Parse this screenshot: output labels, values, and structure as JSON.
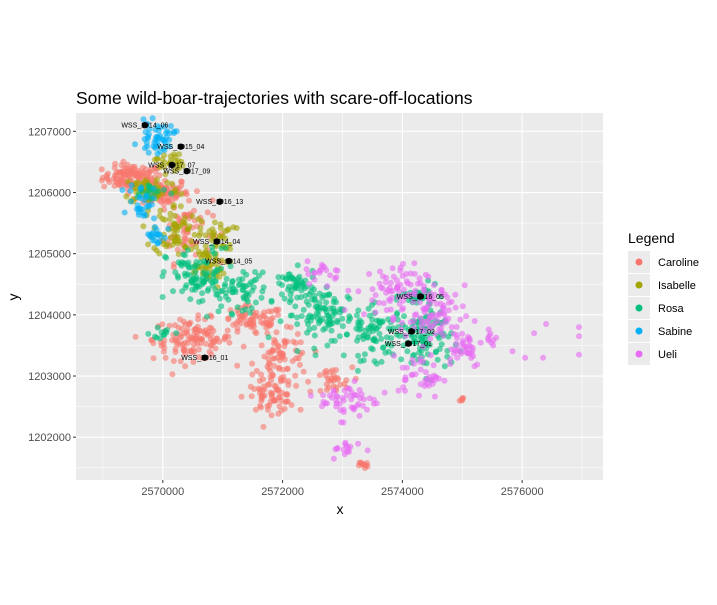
{
  "chart_data": {
    "type": "scatter",
    "title": "Some wild-boar-trajectories with scare-off-locations",
    "xlabel": "x",
    "ylabel": "y",
    "xlim": [
      2568550,
      2577350
    ],
    "ylim": [
      1201300,
      1207300
    ],
    "x_ticks": [
      2570000,
      2572000,
      2574000,
      2576000
    ],
    "x_tick_labels": [
      "2570000",
      "2572000",
      "2574000",
      "2576000"
    ],
    "y_ticks": [
      1202000,
      1203000,
      1204000,
      1205000,
      1206000,
      1207000
    ],
    "y_tick_labels": [
      "1202000",
      "1203000",
      "1204000",
      "1205000",
      "1206000",
      "1207000"
    ],
    "grid": true,
    "legend": {
      "title": "Legend",
      "placement": "right",
      "entries": [
        "Caroline",
        "Isabelle",
        "Rosa",
        "Sabine",
        "Ueli"
      ]
    },
    "colors": {
      "Caroline": "#F8766D",
      "Isabelle": "#A3A500",
      "Rosa": "#00BF7D",
      "Sabine": "#00B0F6",
      "Ueli": "#E76BF3",
      "scare_off": "#000000",
      "panel": "#EBEBEB",
      "grid": "#FFFFFF"
    },
    "series": [
      {
        "name": "Caroline",
        "clusters": [
          {
            "center": [
              2569500,
              1206250
            ],
            "spread": [
              420,
              170
            ],
            "n": 110
          },
          {
            "center": [
              2570000,
              1206000
            ],
            "spread": [
              350,
              200
            ],
            "n": 70
          },
          {
            "center": [
              2570400,
              1205400
            ],
            "spread": [
              350,
              450
            ],
            "n": 60
          },
          {
            "center": [
              2570500,
              1203600
            ],
            "spread": [
              550,
              280
            ],
            "n": 120
          },
          {
            "center": [
              2571500,
              1203900
            ],
            "spread": [
              450,
              200
            ],
            "n": 70
          },
          {
            "center": [
              2572000,
              1203250
            ],
            "spread": [
              380,
              380
            ],
            "n": 80
          },
          {
            "center": [
              2571800,
              1202650
            ],
            "spread": [
              350,
              200
            ],
            "n": 55
          },
          {
            "center": [
              2572800,
              1202900
            ],
            "spread": [
              300,
              200
            ],
            "n": 30
          },
          {
            "center": [
              2573350,
              1201550
            ],
            "spread": [
              60,
              50
            ],
            "n": 10
          },
          {
            "center": [
              2575000,
              1202600
            ],
            "spread": [
              80,
              60
            ],
            "n": 5
          }
        ]
      },
      {
        "name": "Isabelle",
        "clusters": [
          {
            "center": [
              2569800,
              1206050
            ],
            "spread": [
              400,
              200
            ],
            "n": 60
          },
          {
            "center": [
              2570200,
              1205400
            ],
            "spread": [
              300,
              350
            ],
            "n": 60
          },
          {
            "center": [
              2570700,
              1204800
            ],
            "spread": [
              300,
              300
            ],
            "n": 50
          },
          {
            "center": [
              2570900,
              1205300
            ],
            "spread": [
              250,
              200
            ],
            "n": 30
          },
          {
            "center": [
              2570100,
              1206500
            ],
            "spread": [
              200,
              150
            ],
            "n": 25
          }
        ]
      },
      {
        "name": "Rosa",
        "clusters": [
          {
            "center": [
              2570600,
              1204600
            ],
            "spread": [
              450,
              400
            ],
            "n": 90
          },
          {
            "center": [
              2571300,
              1204400
            ],
            "spread": [
              400,
              300
            ],
            "n": 60
          },
          {
            "center": [
              2572700,
              1204000
            ],
            "spread": [
              550,
              350
            ],
            "n": 110
          },
          {
            "center": [
              2573600,
              1203700
            ],
            "spread": [
              450,
              350
            ],
            "n": 80
          },
          {
            "center": [
              2574400,
              1203600
            ],
            "spread": [
              350,
              450
            ],
            "n": 90
          },
          {
            "center": [
              2574300,
              1204300
            ],
            "spread": [
              250,
              150
            ],
            "n": 30
          },
          {
            "center": [
              2572200,
              1204500
            ],
            "spread": [
              300,
              200
            ],
            "n": 40
          },
          {
            "center": [
              2569800,
              1206000
            ],
            "spread": [
              250,
              150
            ],
            "n": 20
          },
          {
            "center": [
              2570000,
              1203700
            ],
            "spread": [
              180,
              100
            ],
            "n": 12
          }
        ]
      },
      {
        "name": "Sabine",
        "clusters": [
          {
            "center": [
              2569900,
              1206900
            ],
            "spread": [
              250,
              200
            ],
            "n": 50
          },
          {
            "center": [
              2569650,
              1205850
            ],
            "spread": [
              180,
              250
            ],
            "n": 30
          },
          {
            "center": [
              2569900,
              1205300
            ],
            "spread": [
              150,
              150
            ],
            "n": 20
          }
        ]
      },
      {
        "name": "Ueli",
        "clusters": [
          {
            "center": [
              2573800,
              1204400
            ],
            "spread": [
              500,
              350
            ],
            "n": 70
          },
          {
            "center": [
              2574500,
              1204000
            ],
            "spread": [
              450,
              400
            ],
            "n": 80
          },
          {
            "center": [
              2574300,
              1203000
            ],
            "spread": [
              300,
              300
            ],
            "n": 40
          },
          {
            "center": [
              2573100,
              1202600
            ],
            "spread": [
              400,
              250
            ],
            "n": 50
          },
          {
            "center": [
              2575000,
              1203500
            ],
            "spread": [
              300,
              300
            ],
            "n": 40
          },
          {
            "center": [
              2572700,
              1204700
            ],
            "spread": [
              250,
              150
            ],
            "n": 20
          },
          {
            "center": [
              2573100,
              1201800
            ],
            "spread": [
              250,
              120
            ],
            "n": 15
          },
          {
            "center": [
              2575500,
              1203600
            ],
            "spread": [
              200,
              150
            ],
            "n": 10
          }
        ],
        "extra_points": [
          [
            2576200,
            1203700
          ],
          [
            2576050,
            1203300
          ],
          [
            2576350,
            1203300
          ],
          [
            2576400,
            1203850
          ],
          [
            2576950,
            1203800
          ],
          [
            2576950,
            1203650
          ],
          [
            2576950,
            1203350
          ]
        ]
      }
    ],
    "scare_off_points": [
      {
        "label": "WSS_2014_06",
        "x": 2569700,
        "y": 1207100
      },
      {
        "label": "WSS_2015_04",
        "x": 2570300,
        "y": 1206750
      },
      {
        "label": "WSS_2017_07",
        "x": 2570150,
        "y": 1206450
      },
      {
        "label": "WSS_2017_09",
        "x": 2570400,
        "y": 1206350
      },
      {
        "label": "WSS_2016_13",
        "x": 2570950,
        "y": 1205850
      },
      {
        "label": "WSS_2014_04",
        "x": 2570900,
        "y": 1205200
      },
      {
        "label": "WSS_2014_05",
        "x": 2571100,
        "y": 1204880
      },
      {
        "label": "WSS_2016_05",
        "x": 2574300,
        "y": 1204300
      },
      {
        "label": "WSS_2017_02",
        "x": 2574150,
        "y": 1203730
      },
      {
        "label": "WSS_2017_01",
        "x": 2574100,
        "y": 1203530
      },
      {
        "label": "WSS_2016_01",
        "x": 2570700,
        "y": 1203300
      }
    ]
  }
}
